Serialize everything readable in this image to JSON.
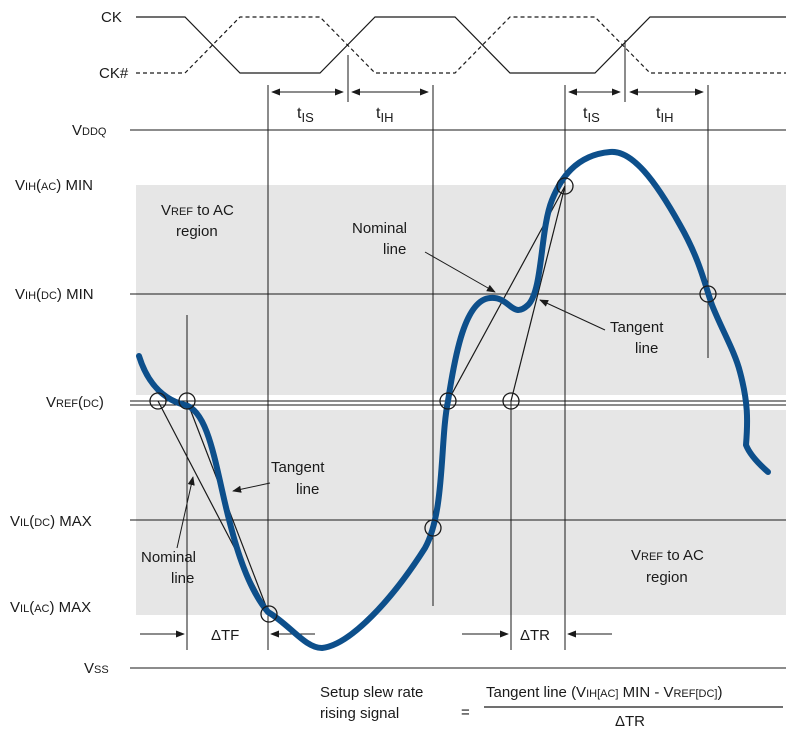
{
  "signals": {
    "ck": "CK",
    "ck_bar": "CK#"
  },
  "levels": {
    "vddq": {
      "base": "V",
      "sub": "DDQ"
    },
    "vih_ac": {
      "base": "V",
      "sub1": "IH",
      "paren": "AC",
      "suffix": "MIN"
    },
    "vih_dc": {
      "base": "V",
      "sub1": "IH",
      "paren": "DC",
      "suffix": "MIN"
    },
    "vref_dc": {
      "base": "V",
      "sub1": "REF",
      "paren": "DC"
    },
    "vil_dc": {
      "base": "V",
      "sub1": "IL",
      "paren": "DC",
      "suffix": "MAX"
    },
    "vil_ac": {
      "base": "V",
      "sub1": "IL",
      "paren": "AC",
      "suffix": "MAX"
    },
    "vss": {
      "base": "V",
      "sub": "SS"
    }
  },
  "timing": {
    "t": "t",
    "is": "IS",
    "ih": "IH",
    "delta_tf": "ΔTF",
    "delta_tr": "ΔTR"
  },
  "regions": {
    "upper": {
      "v": "V",
      "ref": "REF",
      "line1_rest": " to AC",
      "line2": "region"
    },
    "lower": {
      "v": "V",
      "ref": "REF",
      "line1_rest": " to AC",
      "line2": "region"
    }
  },
  "annotations": {
    "nominal_upper": [
      "Nominal",
      "line"
    ],
    "tangent_upper": [
      "Tangent",
      "line"
    ],
    "nominal_lower": [
      "Nominal",
      "line"
    ],
    "tangent_lower": [
      "Tangent",
      "line"
    ]
  },
  "formula": {
    "left_line1": "Setup slew rate",
    "left_line2": "rising signal",
    "equals": "=",
    "num_start": "Tangent line (V",
    "num_ih": "IH",
    "num_ac": "[AC]",
    "num_min": " MIN - V",
    "num_ref": "REF",
    "num_dc": "[DC]",
    "num_end": ")",
    "denominator": "ΔTR"
  },
  "colors": {
    "signal": "#0d4f8b",
    "region_fill": "#e6e6e6",
    "line": "#1a1a1a"
  }
}
